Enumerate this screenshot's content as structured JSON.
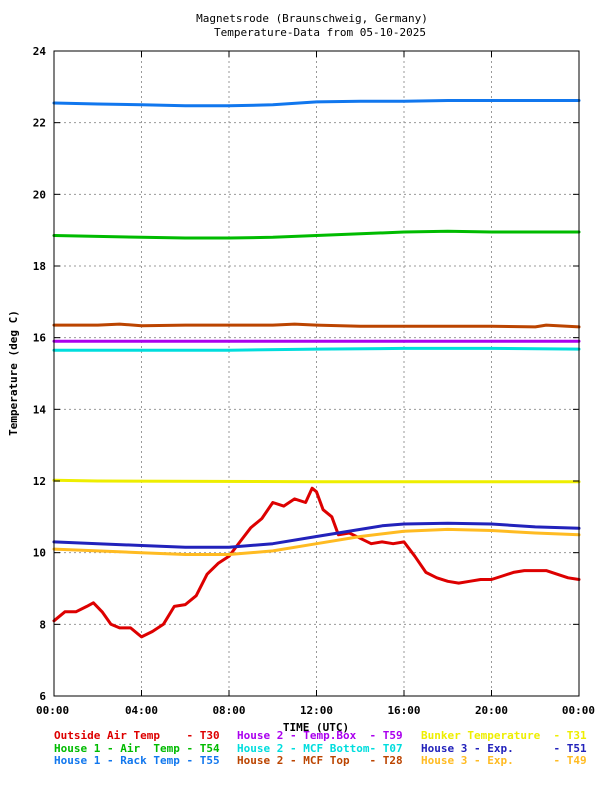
{
  "chart_data": {
    "type": "line",
    "title_line1": "Magnetsrode (Braunschweig, Germany)",
    "title_line2": "Temperature-Data from 05-10-2025",
    "xlabel": "TIME (UTC)",
    "ylabel": "Temperature (deg C)",
    "xlim": [
      0,
      24
    ],
    "ylim": [
      6,
      24
    ],
    "grid": true,
    "x_ticks": [
      {
        "value": 0,
        "label": "00:00"
      },
      {
        "value": 4,
        "label": "04:00"
      },
      {
        "value": 8,
        "label": "08:00"
      },
      {
        "value": 12,
        "label": "12:00"
      },
      {
        "value": 16,
        "label": "16:00"
      },
      {
        "value": 20,
        "label": "20:00"
      },
      {
        "value": 24,
        "label": "00:00"
      }
    ],
    "y_ticks": [
      {
        "value": 6,
        "label": "6"
      },
      {
        "value": 8,
        "label": "8"
      },
      {
        "value": 10,
        "label": "10"
      },
      {
        "value": 12,
        "label": "12"
      },
      {
        "value": 14,
        "label": "14"
      },
      {
        "value": 16,
        "label": "16"
      },
      {
        "value": 18,
        "label": "18"
      },
      {
        "value": 20,
        "label": "20"
      },
      {
        "value": 22,
        "label": "22"
      },
      {
        "value": 24,
        "label": "24"
      }
    ],
    "series": [
      {
        "name": "Outside Air Temp",
        "code": "T30",
        "legend_text": "Outside Air Temp    - T30",
        "color": "#dd0000",
        "points": [
          [
            0,
            8.1
          ],
          [
            0.5,
            8.35
          ],
          [
            1,
            8.35
          ],
          [
            1.5,
            8.5
          ],
          [
            1.8,
            8.6
          ],
          [
            2.2,
            8.35
          ],
          [
            2.6,
            8.0
          ],
          [
            3,
            7.9
          ],
          [
            3.5,
            7.9
          ],
          [
            4,
            7.65
          ],
          [
            4.5,
            7.8
          ],
          [
            5,
            8.0
          ],
          [
            5.5,
            8.5
          ],
          [
            6,
            8.55
          ],
          [
            6.5,
            8.8
          ],
          [
            7,
            9.4
          ],
          [
            7.5,
            9.7
          ],
          [
            8,
            9.9
          ],
          [
            8.5,
            10.3
          ],
          [
            9,
            10.7
          ],
          [
            9.5,
            10.95
          ],
          [
            10,
            11.4
          ],
          [
            10.5,
            11.3
          ],
          [
            11,
            11.5
          ],
          [
            11.5,
            11.4
          ],
          [
            11.8,
            11.8
          ],
          [
            12,
            11.7
          ],
          [
            12.3,
            11.2
          ],
          [
            12.7,
            11.0
          ],
          [
            13,
            10.5
          ],
          [
            13.5,
            10.55
          ],
          [
            14,
            10.4
          ],
          [
            14.5,
            10.25
          ],
          [
            15,
            10.3
          ],
          [
            15.5,
            10.25
          ],
          [
            16,
            10.3
          ],
          [
            16.5,
            9.9
          ],
          [
            17,
            9.45
          ],
          [
            17.5,
            9.3
          ],
          [
            18,
            9.2
          ],
          [
            18.5,
            9.15
          ],
          [
            19,
            9.2
          ],
          [
            19.5,
            9.25
          ],
          [
            20,
            9.25
          ],
          [
            20.5,
            9.35
          ],
          [
            21,
            9.45
          ],
          [
            21.5,
            9.5
          ],
          [
            22,
            9.5
          ],
          [
            22.5,
            9.5
          ],
          [
            23,
            9.4
          ],
          [
            23.5,
            9.3
          ],
          [
            24,
            9.25
          ]
        ]
      },
      {
        "name": "House 1 - Air  Temp",
        "code": "T54",
        "legend_text": "House 1 - Air  Temp - T54",
        "color": "#00bb00",
        "points": [
          [
            0,
            18.85
          ],
          [
            4,
            18.8
          ],
          [
            6,
            18.78
          ],
          [
            8,
            18.78
          ],
          [
            10,
            18.8
          ],
          [
            12,
            18.85
          ],
          [
            14,
            18.9
          ],
          [
            16,
            18.95
          ],
          [
            18,
            18.97
          ],
          [
            20,
            18.95
          ],
          [
            24,
            18.95
          ]
        ]
      },
      {
        "name": "House 1 - Rack Temp",
        "code": "T55",
        "legend_text": "House 1 - Rack Temp - T55",
        "color": "#1177ee",
        "points": [
          [
            0,
            22.55
          ],
          [
            2,
            22.52
          ],
          [
            4,
            22.5
          ],
          [
            6,
            22.47
          ],
          [
            8,
            22.47
          ],
          [
            10,
            22.5
          ],
          [
            12,
            22.58
          ],
          [
            14,
            22.6
          ],
          [
            16,
            22.6
          ],
          [
            18,
            22.62
          ],
          [
            20,
            22.62
          ],
          [
            24,
            22.62
          ]
        ]
      },
      {
        "name": "House 2 - Temp.Box",
        "code": "T59",
        "legend_text": "House 2 - Temp.Box  - T59",
        "color": "#aa00ee",
        "points": [
          [
            0,
            15.9
          ],
          [
            12,
            15.9
          ],
          [
            24,
            15.9
          ]
        ]
      },
      {
        "name": "House 2 - MCF Bottom",
        "code": "T07",
        "legend_text": "House 2 - MCF Bottom- T07",
        "color": "#00dddd",
        "points": [
          [
            0,
            15.65
          ],
          [
            4,
            15.65
          ],
          [
            8,
            15.65
          ],
          [
            12,
            15.68
          ],
          [
            16,
            15.7
          ],
          [
            20,
            15.7
          ],
          [
            24,
            15.68
          ]
        ]
      },
      {
        "name": "House 2 - MCF Top",
        "code": "T28",
        "legend_text": "House 2 - MCF Top   - T28",
        "color": "#bb4400",
        "points": [
          [
            0,
            16.35
          ],
          [
            2,
            16.35
          ],
          [
            3,
            16.38
          ],
          [
            4,
            16.33
          ],
          [
            6,
            16.35
          ],
          [
            8,
            16.35
          ],
          [
            10,
            16.35
          ],
          [
            11,
            16.38
          ],
          [
            12,
            16.35
          ],
          [
            14,
            16.32
          ],
          [
            16,
            16.32
          ],
          [
            18,
            16.32
          ],
          [
            20,
            16.32
          ],
          [
            22,
            16.3
          ],
          [
            22.5,
            16.35
          ],
          [
            24,
            16.3
          ]
        ]
      },
      {
        "name": "Bunker Temperature",
        "code": "T31",
        "legend_text": "Bunker Temperature  - T31",
        "color": "#eeee00",
        "points": [
          [
            0,
            12.02
          ],
          [
            2,
            12.0
          ],
          [
            12,
            11.98
          ],
          [
            24,
            11.98
          ]
        ]
      },
      {
        "name": "House 3 - Exp.",
        "code": "T51",
        "legend_text": "House 3 - Exp.      - T51",
        "color": "#2222bb",
        "points": [
          [
            0,
            10.3
          ],
          [
            2,
            10.25
          ],
          [
            4,
            10.2
          ],
          [
            6,
            10.15
          ],
          [
            8,
            10.15
          ],
          [
            10,
            10.25
          ],
          [
            12,
            10.45
          ],
          [
            14,
            10.65
          ],
          [
            15,
            10.75
          ],
          [
            16,
            10.8
          ],
          [
            18,
            10.82
          ],
          [
            20,
            10.8
          ],
          [
            22,
            10.72
          ],
          [
            24,
            10.68
          ]
        ]
      },
      {
        "name": "House 3 - Exp.",
        "code": "T49",
        "legend_text": "House 3 - Exp.      - T49",
        "color": "#ffbb22",
        "points": [
          [
            0,
            10.1
          ],
          [
            2,
            10.05
          ],
          [
            4,
            10.0
          ],
          [
            6,
            9.95
          ],
          [
            8,
            9.95
          ],
          [
            10,
            10.05
          ],
          [
            12,
            10.25
          ],
          [
            14,
            10.45
          ],
          [
            16,
            10.6
          ],
          [
            18,
            10.65
          ],
          [
            20,
            10.62
          ],
          [
            22,
            10.55
          ],
          [
            24,
            10.5
          ]
        ]
      }
    ]
  }
}
